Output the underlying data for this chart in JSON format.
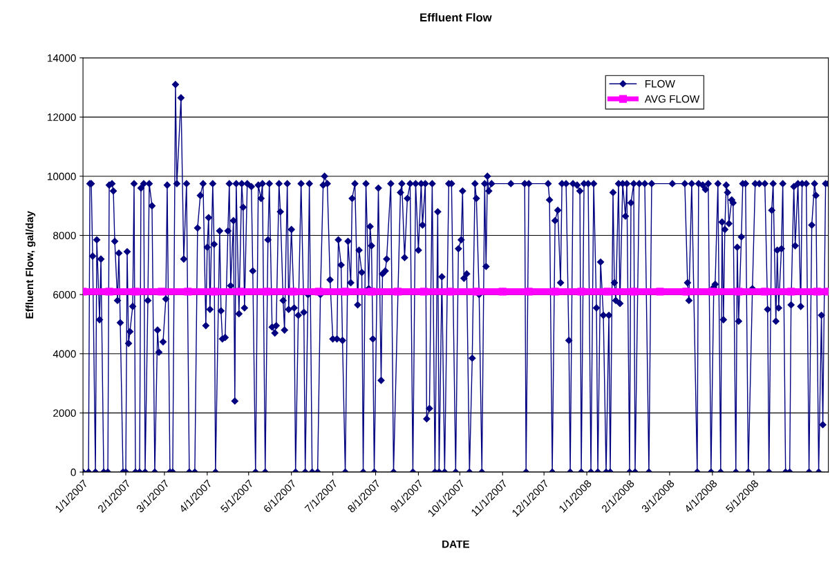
{
  "chart_data": {
    "type": "line",
    "title": "Effluent Flow",
    "xlabel": "DATE",
    "ylabel": "Effluent Flow, gal/day",
    "x": [
      "2007-01-01",
      "2007-01-05",
      "2007-01-06",
      "2007-01-07",
      "2007-01-08",
      "2007-01-10",
      "2007-01-11",
      "2007-01-13",
      "2007-01-14",
      "2007-01-16",
      "2007-01-19",
      "2007-01-20",
      "2007-01-22",
      "2007-01-23",
      "2007-01-24",
      "2007-01-26",
      "2007-01-27",
      "2007-01-28",
      "2007-01-30",
      "2007-02-01",
      "2007-02-02",
      "2007-02-03",
      "2007-02-04",
      "2007-02-06",
      "2007-02-07",
      "2007-02-08",
      "2007-02-11",
      "2007-02-12",
      "2007-02-14",
      "2007-02-15",
      "2007-02-17",
      "2007-02-18",
      "2007-02-20",
      "2007-02-22",
      "2007-02-24",
      "2007-02-25",
      "2007-02-27",
      "2007-02-28",
      "2007-03-02",
      "2007-03-03",
      "2007-03-05",
      "2007-03-07",
      "2007-03-09",
      "2007-03-10",
      "2007-03-13",
      "2007-03-15",
      "2007-03-17",
      "2007-03-19",
      "2007-03-23",
      "2007-03-25",
      "2007-03-27",
      "2007-03-29",
      "2007-03-31",
      "2007-04-01",
      "2007-04-02",
      "2007-04-03",
      "2007-04-05",
      "2007-04-06",
      "2007-04-07",
      "2007-04-10",
      "2007-04-11",
      "2007-04-12",
      "2007-04-14",
      "2007-04-16",
      "2007-04-17",
      "2007-04-18",
      "2007-04-20",
      "2007-04-21",
      "2007-04-22",
      "2007-04-24",
      "2007-04-26",
      "2007-04-27",
      "2007-04-28",
      "2007-04-30",
      "2007-05-03",
      "2007-05-04",
      "2007-05-06",
      "2007-05-08",
      "2007-05-10",
      "2007-05-11",
      "2007-05-13",
      "2007-05-15",
      "2007-05-16",
      "2007-05-18",
      "2007-05-20",
      "2007-05-21",
      "2007-05-23",
      "2007-05-24",
      "2007-05-26",
      "2007-05-27",
      "2007-05-29",
      "2007-05-30",
      "2007-06-01",
      "2007-06-03",
      "2007-06-04",
      "2007-06-06",
      "2007-06-08",
      "2007-06-10",
      "2007-06-11",
      "2007-06-13",
      "2007-06-14",
      "2007-06-16",
      "2007-06-20",
      "2007-06-22",
      "2007-06-24",
      "2007-06-25",
      "2007-06-27",
      "2007-06-29",
      "2007-07-01",
      "2007-07-04",
      "2007-07-05",
      "2007-07-07",
      "2007-07-08",
      "2007-07-10",
      "2007-07-12",
      "2007-07-14",
      "2007-07-15",
      "2007-07-17",
      "2007-07-19",
      "2007-07-20",
      "2007-07-22",
      "2007-07-23",
      "2007-07-25",
      "2007-07-27",
      "2007-07-28",
      "2007-07-29",
      "2007-07-30",
      "2007-07-31",
      "2007-08-03",
      "2007-08-05",
      "2007-08-06",
      "2007-08-08",
      "2007-08-09",
      "2007-08-12",
      "2007-08-14",
      "2007-08-19",
      "2007-08-20",
      "2007-08-22",
      "2007-08-24",
      "2007-08-26",
      "2007-08-28",
      "2007-08-30",
      "2007-09-01",
      "2007-09-03",
      "2007-09-04",
      "2007-09-06",
      "2007-09-07",
      "2007-09-09",
      "2007-09-11",
      "2007-09-13",
      "2007-09-15",
      "2007-09-16",
      "2007-09-18",
      "2007-09-20",
      "2007-09-23",
      "2007-09-25",
      "2007-09-28",
      "2007-09-30",
      "2007-10-02",
      "2007-10-03",
      "2007-10-04",
      "2007-10-06",
      "2007-10-08",
      "2007-10-10",
      "2007-10-12",
      "2007-10-13",
      "2007-10-15",
      "2007-10-17",
      "2007-10-19",
      "2007-10-20",
      "2007-10-21",
      "2007-10-22",
      "2007-10-24",
      "2007-11-07",
      "2007-11-17",
      "2007-11-18",
      "2007-11-20",
      "2007-12-04",
      "2007-12-05",
      "2007-12-07",
      "2007-12-09",
      "2007-12-11",
      "2007-12-13",
      "2007-12-14",
      "2007-12-17",
      "2007-12-19",
      "2007-12-20",
      "2007-12-22",
      "2007-12-25",
      "2007-12-27",
      "2007-12-28",
      "2007-12-30",
      "2008-01-02",
      "2008-01-04",
      "2008-01-06",
      "2008-01-08",
      "2008-01-09",
      "2008-01-11",
      "2008-01-13",
      "2008-01-15",
      "2008-01-17",
      "2008-01-18",
      "2008-01-20",
      "2008-01-21",
      "2008-01-22",
      "2008-01-24",
      "2008-01-25",
      "2008-01-27",
      "2008-01-29",
      "2008-01-30",
      "2008-02-01",
      "2008-02-02",
      "2008-02-04",
      "2008-02-05",
      "2008-02-08",
      "2008-02-12",
      "2008-02-15",
      "2008-02-17",
      "2008-03-03",
      "2008-03-12",
      "2008-03-14",
      "2008-03-15",
      "2008-03-17",
      "2008-03-21",
      "2008-03-22",
      "2008-03-25",
      "2008-03-27",
      "2008-03-29",
      "2008-03-31",
      "2008-04-02",
      "2008-04-03",
      "2008-04-05",
      "2008-04-07",
      "2008-04-08",
      "2008-04-09",
      "2008-04-10",
      "2008-04-11",
      "2008-04-12",
      "2008-04-13",
      "2008-04-15",
      "2008-04-16",
      "2008-04-18",
      "2008-04-19",
      "2008-04-20",
      "2008-04-22",
      "2008-04-23",
      "2008-04-25",
      "2008-04-27",
      "2008-04-30",
      "2008-05-02",
      "2008-05-05",
      "2008-05-09",
      "2008-05-11",
      "2008-05-12",
      "2008-05-14",
      "2008-05-15",
      "2008-05-17",
      "2008-05-18",
      "2008-05-19",
      "2008-05-21",
      "2008-05-22",
      "2008-05-24",
      "2008-05-27",
      "2008-05-28",
      "2008-05-30",
      "2008-05-31",
      "2008-06-02",
      "2008-06-04",
      "2008-06-05",
      "2008-06-08",
      "2008-06-10",
      "2008-06-12",
      "2008-06-14",
      "2008-06-15",
      "2008-06-17",
      "2008-06-19",
      "2008-06-20",
      "2008-06-22",
      "2008-06-24"
    ],
    "series": [
      {
        "name": "FLOW",
        "color": "#000080",
        "marker": "diamond",
        "values": [
          0,
          0,
          9750,
          9750,
          7300,
          0,
          7850,
          5150,
          7200,
          0,
          0,
          9700,
          9750,
          9500,
          7800,
          5800,
          7400,
          5050,
          0,
          0,
          7450,
          4350,
          4750,
          5600,
          9750,
          0,
          0,
          9600,
          9750,
          0,
          5800,
          9750,
          9000,
          0,
          4800,
          4050,
          null,
          4400,
          5850,
          9700,
          0,
          0,
          13100,
          9750,
          12650,
          7200,
          9750,
          0,
          0,
          8250,
          9350,
          9750,
          4950,
          7600,
          8600,
          5500,
          9750,
          7700,
          0,
          8150,
          5450,
          4500,
          4550,
          8150,
          9750,
          6300,
          8500,
          2400,
          9750,
          5350,
          9750,
          8950,
          5550,
          9750,
          9650,
          6800,
          0,
          9700,
          9250,
          9750,
          0,
          7850,
          9750,
          4900,
          4700,
          4950,
          9750,
          8800,
          5800,
          4800,
          9750,
          5500,
          8200,
          5550,
          0,
          5300,
          9750,
          5400,
          0,
          6000,
          9750,
          0,
          0,
          6000,
          9700,
          10000,
          9750,
          6500,
          4500,
          4500,
          7850,
          7000,
          4450,
          0,
          7800,
          6400,
          9250,
          9750,
          5650,
          7500,
          6750,
          0,
          9750,
          6200,
          8300,
          7650,
          4500,
          0,
          9600,
          3100,
          6700,
          6800,
          7200,
          9750,
          0,
          9450,
          9750,
          7250,
          9250,
          9750,
          0,
          9750,
          7500,
          9750,
          8350,
          9750,
          1800,
          2150,
          9750,
          0,
          8800,
          0,
          6600,
          0,
          9750,
          9750,
          0,
          7550,
          7850,
          9500,
          6550,
          6700,
          0,
          3850,
          9750,
          9250,
          6000,
          0,
          9750,
          6950,
          10000,
          9500,
          9750,
          9750,
          9750,
          0,
          9750,
          9750,
          9200,
          0,
          8500,
          8850,
          6400,
          9750,
          9750,
          4450,
          0,
          9750,
          9700,
          9500,
          0,
          9750,
          9750,
          0,
          9750,
          5550,
          0,
          7100,
          5300,
          0,
          5300,
          0,
          9450,
          6400,
          5800,
          9750,
          5700,
          9750,
          8650,
          9750,
          0,
          9100,
          9750,
          0,
          9750,
          9750,
          0,
          9750,
          9750,
          9750,
          6400,
          5800,
          9750,
          0,
          9750,
          9700,
          9550,
          9750,
          0,
          6250,
          6350,
          9750,
          0,
          8450,
          5150,
          8200,
          9700,
          9450,
          8400,
          9200,
          9100,
          0,
          7600,
          5100,
          7950,
          9750,
          9750,
          0,
          6200,
          9750,
          9750,
          9750,
          5500,
          0,
          8850,
          9750,
          5100,
          7500,
          5550,
          7550,
          9750,
          0,
          0,
          5650,
          9650,
          7650,
          9750,
          5600,
          9750,
          9750,
          0,
          8350,
          9750,
          9350,
          0,
          5300,
          1600,
          9750,
          9750
        ]
      },
      {
        "name": "AVG FLOW",
        "color": "#ff00ff",
        "marker": "square",
        "x": [
          "2007-01-01",
          "2007-01-20",
          "2007-02-08",
          "2007-02-27",
          "2007-03-18",
          "2007-04-06",
          "2007-04-25",
          "2007-05-14",
          "2007-06-02",
          "2007-06-21",
          "2007-07-10",
          "2007-07-29",
          "2007-08-17",
          "2007-09-05",
          "2007-09-24",
          "2007-10-13",
          "2007-11-01",
          "2007-11-20",
          "2007-12-09",
          "2007-12-28",
          "2008-01-16",
          "2008-02-04",
          "2008-02-23",
          "2008-03-13",
          "2008-04-01",
          "2008-04-20",
          "2008-05-09",
          "2008-05-28",
          "2008-06-16",
          "2008-06-24"
        ],
        "values": [
          6100,
          6100,
          6100,
          6100,
          6100,
          6100,
          6100,
          6100,
          6100,
          6100,
          6100,
          6100,
          6100,
          6100,
          6100,
          6100,
          6100,
          6100,
          6100,
          6100,
          6100,
          6100,
          6100,
          6100,
          6100,
          6100,
          6100,
          6100,
          6100,
          6100
        ]
      }
    ],
    "xlim": [
      "2007-01-01",
      "2008-06-24"
    ],
    "xticks": [
      {
        "value": "2007-01-01",
        "label": "1/1/2007"
      },
      {
        "value": "2007-02-01",
        "label": "2/1/2007"
      },
      {
        "value": "2007-03-01",
        "label": "3/1/2007"
      },
      {
        "value": "2007-04-01",
        "label": "4/1/2007"
      },
      {
        "value": "2007-05-01",
        "label": "5/1/2007"
      },
      {
        "value": "2007-06-01",
        "label": "6/1/2007"
      },
      {
        "value": "2007-07-01",
        "label": "7/1/2007"
      },
      {
        "value": "2007-08-01",
        "label": "8/1/2007"
      },
      {
        "value": "2007-09-01",
        "label": "9/1/2007"
      },
      {
        "value": "2007-10-01",
        "label": "10/1/2007"
      },
      {
        "value": "2007-11-01",
        "label": "11/1/2007"
      },
      {
        "value": "2007-12-01",
        "label": "12/1/2007"
      },
      {
        "value": "2008-01-01",
        "label": "1/1/2008"
      },
      {
        "value": "2008-02-01",
        "label": "2/1/2008"
      },
      {
        "value": "2008-03-01",
        "label": "3/1/2008"
      },
      {
        "value": "2008-04-01",
        "label": "4/1/2008"
      },
      {
        "value": "2008-05-01",
        "label": "5/1/2008"
      }
    ],
    "ylim": [
      0,
      14000
    ],
    "yticks": [
      0,
      2000,
      4000,
      6000,
      8000,
      10000,
      12000,
      14000
    ],
    "grid": "y",
    "legend": "top right",
    "line_style": "solid"
  }
}
